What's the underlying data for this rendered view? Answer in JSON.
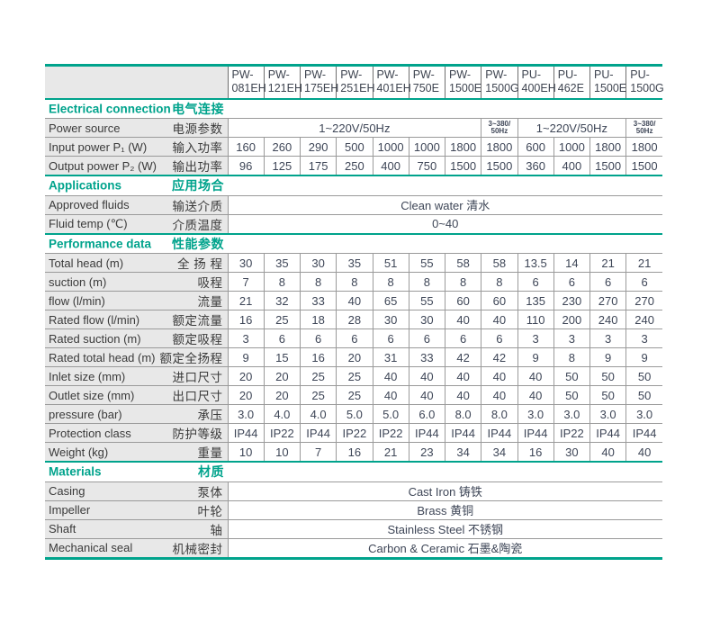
{
  "colors": {
    "accent": "#00a38c",
    "label_background": "#e8e8e8",
    "grid_line": "#9a9a9a",
    "header_grid_line": "#6f6f6f",
    "value_text": "#3e4657",
    "label_text": "#3a3a3a"
  },
  "header": {
    "models": [
      [
        "PW-",
        "081EH"
      ],
      [
        "PW-",
        "121EH"
      ],
      [
        "PW-",
        "175EH"
      ],
      [
        "PW-",
        "251EH"
      ],
      [
        "PW-",
        "401EH"
      ],
      [
        "PW-",
        "750E"
      ],
      [
        "PW-",
        "1500E"
      ],
      [
        "PW-",
        "1500G"
      ],
      [
        "PU-",
        "400EH"
      ],
      [
        "PU-",
        "462E"
      ],
      [
        "PU-",
        "1500E"
      ],
      [
        "PU-",
        "1500G"
      ]
    ]
  },
  "sections": [
    {
      "title_en": "Electrical connection",
      "title_zh": "电气连接",
      "rows": [
        {
          "en": "Power source",
          "zh": "电源参数",
          "spans": [
            {
              "text": "1~220V/50Hz",
              "cols": 7
            },
            {
              "lines": [
                "3~380/",
                "50Hz"
              ],
              "cols": 1,
              "small": true
            },
            {
              "text": "1~220V/50Hz",
              "cols": 3
            },
            {
              "lines": [
                "3~380/",
                "50Hz"
              ],
              "cols": 1,
              "small": true
            }
          ]
        },
        {
          "en": "Input power P₁ (W)",
          "zh": "输入功率",
          "values": [
            "160",
            "260",
            "290",
            "500",
            "1000",
            "1000",
            "1800",
            "1800",
            "600",
            "1000",
            "1800",
            "1800"
          ]
        },
        {
          "en": "Output power P₂ (W)",
          "zh": "输出功率",
          "values": [
            "96",
            "125",
            "175",
            "250",
            "400",
            "750",
            "1500",
            "1500",
            "360",
            "400",
            "1500",
            "1500"
          ]
        }
      ]
    },
    {
      "title_en": "Applications",
      "title_zh": "应用场合",
      "rows": [
        {
          "en": "Approved fluids",
          "zh": "输送介质",
          "spans": [
            {
              "text": "Clean water 清水",
              "cols": 12
            }
          ]
        },
        {
          "en": "Fluid temp (℃)",
          "zh": "介质温度",
          "spans": [
            {
              "text": "0~40",
              "cols": 12
            }
          ]
        }
      ]
    },
    {
      "title_en": "Performance data",
      "title_zh": "性能参数",
      "rows": [
        {
          "en": "Total head (m)",
          "zh": "全 扬 程",
          "values": [
            "30",
            "35",
            "30",
            "35",
            "51",
            "55",
            "58",
            "58",
            "13.5",
            "14",
            "21",
            "21"
          ]
        },
        {
          "en": "suction (m)",
          "zh": "吸程",
          "values": [
            "7",
            "8",
            "8",
            "8",
            "8",
            "8",
            "8",
            "8",
            "6",
            "6",
            "6",
            "6"
          ]
        },
        {
          "en": "flow (l/min)",
          "zh": "流量",
          "values": [
            "21",
            "32",
            "33",
            "40",
            "65",
            "55",
            "60",
            "60",
            "135",
            "230",
            "270",
            "270"
          ]
        },
        {
          "en": "Rated flow (l/min)",
          "zh": "额定流量",
          "values": [
            "16",
            "25",
            "18",
            "28",
            "30",
            "30",
            "40",
            "40",
            "110",
            "200",
            "240",
            "240"
          ]
        },
        {
          "en": "Rated suction (m)",
          "zh": "额定吸程",
          "values": [
            "3",
            "6",
            "6",
            "6",
            "6",
            "6",
            "6",
            "6",
            "3",
            "3",
            "3",
            "3"
          ]
        },
        {
          "en": "Rated total head (m)",
          "zh": "额定全扬程",
          "values": [
            "9",
            "15",
            "16",
            "20",
            "31",
            "33",
            "42",
            "42",
            "9",
            "8",
            "9",
            "9"
          ]
        },
        {
          "en": "Inlet size (mm)",
          "zh": "进口尺寸",
          "values": [
            "20",
            "20",
            "25",
            "25",
            "40",
            "40",
            "40",
            "40",
            "40",
            "50",
            "50",
            "50"
          ]
        },
        {
          "en": "Outlet size (mm)",
          "zh": "出口尺寸",
          "values": [
            "20",
            "20",
            "25",
            "25",
            "40",
            "40",
            "40",
            "40",
            "40",
            "50",
            "50",
            "50"
          ]
        },
        {
          "en": "pressure (bar)",
          "zh": "承压",
          "values": [
            "3.0",
            "4.0",
            "4.0",
            "5.0",
            "5.0",
            "6.0",
            "8.0",
            "8.0",
            "3.0",
            "3.0",
            "3.0",
            "3.0"
          ]
        },
        {
          "en": "Protection class",
          "zh": "防护等级",
          "values": [
            "IP44",
            "IP22",
            "IP44",
            "IP22",
            "IP22",
            "IP44",
            "IP44",
            "IP44",
            "IP44",
            "IP22",
            "IP44",
            "IP44"
          ]
        },
        {
          "en": "Weight (kg)",
          "zh": "重量",
          "values": [
            "10",
            "10",
            "7",
            "16",
            "21",
            "23",
            "34",
            "34",
            "16",
            "30",
            "40",
            "40"
          ]
        }
      ]
    },
    {
      "title_en": "Materials",
      "title_zh": "材质",
      "rows": [
        {
          "en": "Casing",
          "zh": "泵体",
          "spans": [
            {
              "text": "Cast Iron 铸铁",
              "cols": 12
            }
          ]
        },
        {
          "en": "Impeller",
          "zh": "叶轮",
          "spans": [
            {
              "text": "Brass 黄铜",
              "cols": 12
            }
          ]
        },
        {
          "en": "Shaft",
          "zh": "轴",
          "spans": [
            {
              "text": "Stainless Steel 不锈钢",
              "cols": 12
            }
          ]
        },
        {
          "en": "Mechanical seal",
          "zh": "机械密封",
          "spans": [
            {
              "text": "Carbon & Ceramic 石墨&陶瓷",
              "cols": 12
            }
          ]
        }
      ]
    }
  ]
}
